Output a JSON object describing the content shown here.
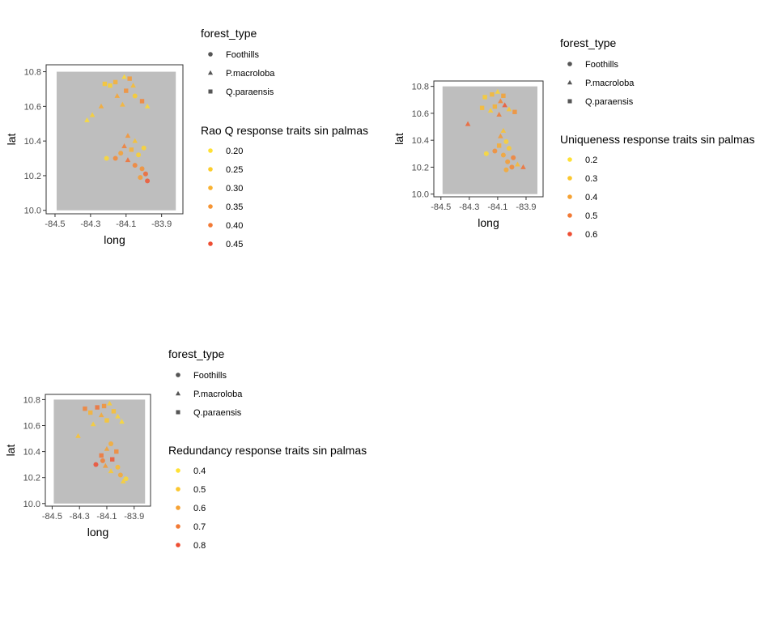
{
  "chart_data": [
    {
      "type": "scatter",
      "xlabel": "long",
      "ylabel": "lat",
      "xlim": [
        -84.55,
        -83.78
      ],
      "ylim": [
        9.98,
        10.84
      ],
      "xticks": [
        -84.5,
        -84.3,
        -84.1,
        -83.9
      ],
      "xtick_labels": [
        "-84.5",
        "-84.3",
        "-84.1",
        "-83.9"
      ],
      "yticks": [
        10.0,
        10.2,
        10.4,
        10.6,
        10.8
      ],
      "ytick_labels": [
        "10.0",
        "10.2",
        "10.4",
        "10.6",
        "10.8"
      ],
      "panel_fill": "#bebebe",
      "shape_legend": {
        "title": "forest_type",
        "items": [
          {
            "label": "Foothills",
            "shape": "circle"
          },
          {
            "label": "P.macroloba",
            "shape": "triangle"
          },
          {
            "label": "Q.paraensis",
            "shape": "square"
          }
        ]
      },
      "color_legend": {
        "title": "Rao Q response traits sin palmas",
        "items": [
          {
            "label": "0.20",
            "color": "#ffe135"
          },
          {
            "label": "0.25",
            "color": "#fccd2c"
          },
          {
            "label": "0.30",
            "color": "#f9b232"
          },
          {
            "label": "0.35",
            "color": "#f69535"
          },
          {
            "label": "0.40",
            "color": "#f27a35"
          },
          {
            "label": "0.45",
            "color": "#ee4e33"
          }
        ]
      },
      "points": [
        {
          "x": -84.22,
          "y": 10.73,
          "v": 0.26,
          "shape": "square"
        },
        {
          "x": -84.19,
          "y": 10.72,
          "v": 0.24,
          "shape": "square"
        },
        {
          "x": -84.16,
          "y": 10.74,
          "v": 0.3,
          "shape": "square"
        },
        {
          "x": -84.11,
          "y": 10.77,
          "v": 0.22,
          "shape": "triangle"
        },
        {
          "x": -84.08,
          "y": 10.76,
          "v": 0.34,
          "shape": "square"
        },
        {
          "x": -84.06,
          "y": 10.72,
          "v": 0.28,
          "shape": "triangle"
        },
        {
          "x": -84.1,
          "y": 10.69,
          "v": 0.36,
          "shape": "square"
        },
        {
          "x": -84.15,
          "y": 10.66,
          "v": 0.32,
          "shape": "triangle"
        },
        {
          "x": -84.05,
          "y": 10.66,
          "v": 0.25,
          "shape": "circle"
        },
        {
          "x": -84.01,
          "y": 10.63,
          "v": 0.38,
          "shape": "square"
        },
        {
          "x": -84.12,
          "y": 10.61,
          "v": 0.29,
          "shape": "triangle"
        },
        {
          "x": -83.98,
          "y": 10.6,
          "v": 0.22,
          "shape": "triangle"
        },
        {
          "x": -84.24,
          "y": 10.6,
          "v": 0.31,
          "shape": "triangle"
        },
        {
          "x": -84.29,
          "y": 10.55,
          "v": 0.24,
          "shape": "triangle"
        },
        {
          "x": -84.32,
          "y": 10.52,
          "v": 0.21,
          "shape": "triangle"
        },
        {
          "x": -84.09,
          "y": 10.43,
          "v": 0.35,
          "shape": "triangle"
        },
        {
          "x": -84.05,
          "y": 10.4,
          "v": 0.27,
          "shape": "triangle"
        },
        {
          "x": -84.11,
          "y": 10.37,
          "v": 0.39,
          "shape": "triangle"
        },
        {
          "x": -84.07,
          "y": 10.35,
          "v": 0.3,
          "shape": "square"
        },
        {
          "x": -84.13,
          "y": 10.33,
          "v": 0.33,
          "shape": "circle"
        },
        {
          "x": -84.03,
          "y": 10.32,
          "v": 0.24,
          "shape": "circle"
        },
        {
          "x": -84.16,
          "y": 10.3,
          "v": 0.37,
          "shape": "circle"
        },
        {
          "x": -84.09,
          "y": 10.29,
          "v": 0.41,
          "shape": "triangle"
        },
        {
          "x": -84.21,
          "y": 10.3,
          "v": 0.22,
          "shape": "circle"
        },
        {
          "x": -84.05,
          "y": 10.26,
          "v": 0.38,
          "shape": "circle"
        },
        {
          "x": -84.01,
          "y": 10.24,
          "v": 0.36,
          "shape": "circle"
        },
        {
          "x": -83.99,
          "y": 10.21,
          "v": 0.42,
          "shape": "circle"
        },
        {
          "x": -83.98,
          "y": 10.17,
          "v": 0.44,
          "shape": "circle"
        },
        {
          "x": -84.02,
          "y": 10.19,
          "v": 0.34,
          "shape": "circle"
        },
        {
          "x": -84.0,
          "y": 10.36,
          "v": 0.23,
          "shape": "circle"
        }
      ]
    },
    {
      "type": "scatter",
      "xlabel": "long",
      "ylabel": "lat",
      "xlim": [
        -84.55,
        -83.78
      ],
      "ylim": [
        9.98,
        10.84
      ],
      "xticks": [
        -84.5,
        -84.3,
        -84.1,
        -83.9
      ],
      "xtick_labels": [
        "-84.5",
        "-84.3",
        "-84.1",
        "-83.9"
      ],
      "yticks": [
        10.0,
        10.2,
        10.4,
        10.6,
        10.8
      ],
      "ytick_labels": [
        "10.0",
        "10.2",
        "10.4",
        "10.6",
        "10.8"
      ],
      "panel_fill": "#bebebe",
      "shape_legend": {
        "title": "forest_type",
        "items": [
          {
            "label": "Foothills",
            "shape": "circle"
          },
          {
            "label": "P.macroloba",
            "shape": "triangle"
          },
          {
            "label": "Q.paraensis",
            "shape": "square"
          }
        ]
      },
      "color_legend": {
        "title": "Uniqueness response traits sin palmas",
        "items": [
          {
            "label": "0.2",
            "color": "#ffe135"
          },
          {
            "label": "0.3",
            "color": "#fbc72e"
          },
          {
            "label": "0.4",
            "color": "#f6a233"
          },
          {
            "label": "0.5",
            "color": "#f27a35"
          },
          {
            "label": "0.6",
            "color": "#ee4e33"
          }
        ]
      },
      "points": [
        {
          "x": -84.19,
          "y": 10.72,
          "v": 0.28,
          "shape": "square"
        },
        {
          "x": -84.14,
          "y": 10.74,
          "v": 0.34,
          "shape": "square"
        },
        {
          "x": -84.1,
          "y": 10.76,
          "v": 0.25,
          "shape": "triangle"
        },
        {
          "x": -84.06,
          "y": 10.73,
          "v": 0.4,
          "shape": "square"
        },
        {
          "x": -84.08,
          "y": 10.69,
          "v": 0.47,
          "shape": "triangle"
        },
        {
          "x": -84.05,
          "y": 10.66,
          "v": 0.58,
          "shape": "triangle"
        },
        {
          "x": -84.12,
          "y": 10.65,
          "v": 0.36,
          "shape": "square"
        },
        {
          "x": -84.02,
          "y": 10.63,
          "v": 0.3,
          "shape": "triangle"
        },
        {
          "x": -83.98,
          "y": 10.61,
          "v": 0.44,
          "shape": "square"
        },
        {
          "x": -84.15,
          "y": 10.62,
          "v": 0.27,
          "shape": "triangle"
        },
        {
          "x": -84.21,
          "y": 10.64,
          "v": 0.33,
          "shape": "square"
        },
        {
          "x": -84.09,
          "y": 10.59,
          "v": 0.5,
          "shape": "triangle"
        },
        {
          "x": -84.31,
          "y": 10.52,
          "v": 0.55,
          "shape": "triangle"
        },
        {
          "x": -84.06,
          "y": 10.47,
          "v": 0.31,
          "shape": "triangle"
        },
        {
          "x": -84.08,
          "y": 10.43,
          "v": 0.42,
          "shape": "triangle"
        },
        {
          "x": -84.04,
          "y": 10.39,
          "v": 0.26,
          "shape": "circle"
        },
        {
          "x": -84.09,
          "y": 10.36,
          "v": 0.37,
          "shape": "square"
        },
        {
          "x": -84.02,
          "y": 10.34,
          "v": 0.29,
          "shape": "circle"
        },
        {
          "x": -84.12,
          "y": 10.32,
          "v": 0.45,
          "shape": "circle"
        },
        {
          "x": -84.18,
          "y": 10.3,
          "v": 0.22,
          "shape": "circle"
        },
        {
          "x": -84.06,
          "y": 10.29,
          "v": 0.39,
          "shape": "circle"
        },
        {
          "x": -83.99,
          "y": 10.27,
          "v": 0.48,
          "shape": "circle"
        },
        {
          "x": -84.03,
          "y": 10.24,
          "v": 0.41,
          "shape": "circle"
        },
        {
          "x": -83.96,
          "y": 10.22,
          "v": 0.33,
          "shape": "triangle"
        },
        {
          "x": -84.0,
          "y": 10.2,
          "v": 0.46,
          "shape": "circle"
        },
        {
          "x": -83.92,
          "y": 10.2,
          "v": 0.52,
          "shape": "triangle"
        },
        {
          "x": -84.04,
          "y": 10.18,
          "v": 0.38,
          "shape": "circle"
        }
      ]
    },
    {
      "type": "scatter",
      "xlabel": "long",
      "ylabel": "lat",
      "xlim": [
        -84.55,
        -83.78
      ],
      "ylim": [
        9.98,
        10.84
      ],
      "xticks": [
        -84.5,
        -84.3,
        -84.1,
        -83.9
      ],
      "xtick_labels": [
        "-84.5",
        "-84.3",
        "-84.1",
        "-83.9"
      ],
      "yticks": [
        10.0,
        10.2,
        10.4,
        10.6,
        10.8
      ],
      "ytick_labels": [
        "10.0",
        "10.2",
        "10.4",
        "10.6",
        "10.8"
      ],
      "panel_fill": "#bebebe",
      "shape_legend": {
        "title": "forest_type",
        "items": [
          {
            "label": "Foothills",
            "shape": "circle"
          },
          {
            "label": "P.macroloba",
            "shape": "triangle"
          },
          {
            "label": "Q.paraensis",
            "shape": "square"
          }
        ]
      },
      "color_legend": {
        "title": "Redundancy response traits sin palmas",
        "items": [
          {
            "label": "0.4",
            "color": "#ffe135"
          },
          {
            "label": "0.5",
            "color": "#fbc72e"
          },
          {
            "label": "0.6",
            "color": "#f6a233"
          },
          {
            "label": "0.7",
            "color": "#f27a35"
          },
          {
            "label": "0.8",
            "color": "#ee4e33"
          }
        ]
      },
      "points": [
        {
          "x": -84.26,
          "y": 10.73,
          "v": 0.68,
          "shape": "square"
        },
        {
          "x": -84.22,
          "y": 10.7,
          "v": 0.55,
          "shape": "square"
        },
        {
          "x": -84.17,
          "y": 10.74,
          "v": 0.72,
          "shape": "square"
        },
        {
          "x": -84.12,
          "y": 10.75,
          "v": 0.64,
          "shape": "square"
        },
        {
          "x": -84.08,
          "y": 10.77,
          "v": 0.48,
          "shape": "triangle"
        },
        {
          "x": -84.14,
          "y": 10.68,
          "v": 0.58,
          "shape": "triangle"
        },
        {
          "x": -84.05,
          "y": 10.71,
          "v": 0.52,
          "shape": "square"
        },
        {
          "x": -84.02,
          "y": 10.67,
          "v": 0.45,
          "shape": "triangle"
        },
        {
          "x": -84.1,
          "y": 10.64,
          "v": 0.5,
          "shape": "square"
        },
        {
          "x": -83.99,
          "y": 10.63,
          "v": 0.43,
          "shape": "triangle"
        },
        {
          "x": -84.2,
          "y": 10.61,
          "v": 0.47,
          "shape": "triangle"
        },
        {
          "x": -84.31,
          "y": 10.52,
          "v": 0.51,
          "shape": "triangle"
        },
        {
          "x": -84.07,
          "y": 10.46,
          "v": 0.57,
          "shape": "circle"
        },
        {
          "x": -84.1,
          "y": 10.42,
          "v": 0.6,
          "shape": "triangle"
        },
        {
          "x": -84.03,
          "y": 10.4,
          "v": 0.66,
          "shape": "square"
        },
        {
          "x": -84.14,
          "y": 10.37,
          "v": 0.71,
          "shape": "square"
        },
        {
          "x": -84.06,
          "y": 10.34,
          "v": 0.78,
          "shape": "square"
        },
        {
          "x": -84.18,
          "y": 10.3,
          "v": 0.84,
          "shape": "circle"
        },
        {
          "x": -84.11,
          "y": 10.29,
          "v": 0.62,
          "shape": "triangle"
        },
        {
          "x": -84.02,
          "y": 10.28,
          "v": 0.53,
          "shape": "circle"
        },
        {
          "x": -84.07,
          "y": 10.25,
          "v": 0.49,
          "shape": "triangle"
        },
        {
          "x": -84.0,
          "y": 10.22,
          "v": 0.58,
          "shape": "circle"
        },
        {
          "x": -83.96,
          "y": 10.19,
          "v": 0.44,
          "shape": "circle"
        },
        {
          "x": -83.98,
          "y": 10.17,
          "v": 0.46,
          "shape": "triangle"
        },
        {
          "x": -84.13,
          "y": 10.33,
          "v": 0.69,
          "shape": "circle"
        }
      ]
    }
  ]
}
